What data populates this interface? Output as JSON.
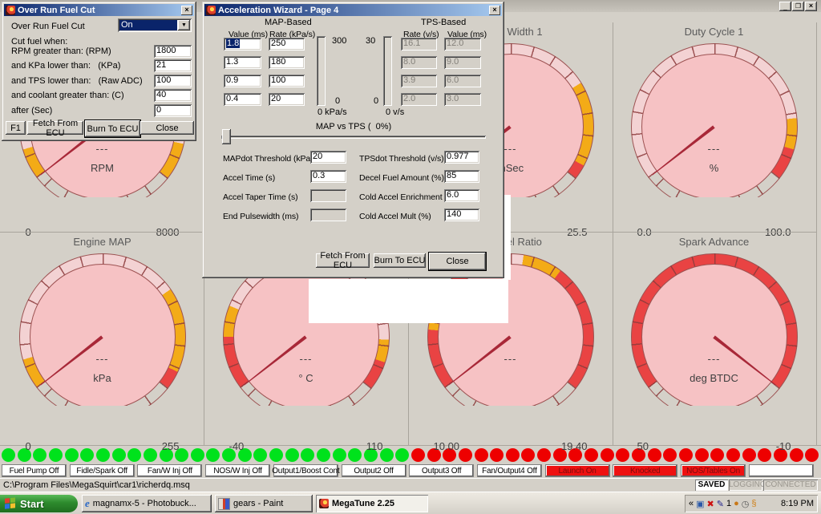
{
  "main_window": {
    "controls": {
      "minimize": "_",
      "maximize": "❐",
      "close": "×"
    }
  },
  "overrun": {
    "title": "Over Run Fuel Cut",
    "enable_label": "Over Run Fuel Cut",
    "enable_value": "On",
    "cut_when": "Cut fuel when:",
    "fields": [
      {
        "label": "RPM greater than: (RPM)",
        "value": "1800"
      },
      {
        "label": "and KPa lower than:   (KPa)",
        "value": "21"
      },
      {
        "label": "and TPS lower than:   (Raw ADC)",
        "value": "100"
      },
      {
        "label": "and coolant greater than: (C)",
        "value": "40"
      },
      {
        "label": "after (Sec)",
        "value": "0"
      }
    ],
    "buttons": [
      "F1",
      "Fetch From ECU",
      "Burn To ECU",
      "Close"
    ]
  },
  "wizard": {
    "title": "Acceleration Wizard - Page 4",
    "map": {
      "heading": "MAP-Based",
      "col_value": "Value (ms)",
      "col_rate": "Rate (kPa/s)",
      "rows": [
        [
          "1.8",
          "250"
        ],
        [
          "1.3",
          "180"
        ],
        [
          "0.9",
          "100"
        ],
        [
          "0.4",
          "20"
        ]
      ],
      "selected_cell": "1.8",
      "bar_max": "300",
      "bar_min": "0",
      "bar_caption": "0 kPa/s"
    },
    "tps": {
      "heading": "TPS-Based",
      "col_rate": "Rate (v/s)",
      "col_value": "Value (ms)",
      "rows": [
        [
          "16.1",
          "12.0"
        ],
        [
          "8.0",
          "9.0"
        ],
        [
          "3.9",
          "6.0"
        ],
        [
          "2.0",
          "3.0"
        ]
      ],
      "bar_max": "30",
      "bar_min": "0",
      "bar_caption": "0 v/s"
    },
    "slider_label": "MAP vs TPS (  0%)",
    "left_fields": [
      {
        "label": "MAPdot Threshold (kPa/s)",
        "value": "20",
        "disabled": false
      },
      {
        "label": "Accel Time (s)",
        "value": "0.3",
        "disabled": false
      },
      {
        "label": "Accel Taper Time (s)",
        "value": "",
        "disabled": true
      },
      {
        "label": "End Pulsewidth (ms)",
        "value": "",
        "disabled": true
      }
    ],
    "right_fields": [
      {
        "label": "TPSdot Threshold (v/s)",
        "value": "0.977",
        "disabled": false
      },
      {
        "label": "Decel Fuel Amount (%)",
        "value": "85",
        "disabled": false
      },
      {
        "label": "Cold Accel Enrichment (ms)",
        "value": "6.0",
        "disabled": false
      },
      {
        "label": "Cold Accel Mult (%)",
        "value": "140",
        "disabled": false
      }
    ],
    "buttons": [
      "Fetch From ECU",
      "Burn To ECU",
      "Close"
    ]
  },
  "chart_data": {
    "type": "gauge-cluster",
    "colors": {
      "rim": "#f3d2d3",
      "yellow": "#f3ab17",
      "red": "#e94343",
      "face": "#f6c2c4",
      "needle": "#a82838",
      "outline": "#9c5252"
    },
    "gauges": [
      {
        "col": 0,
        "row": 0,
        "title": "",
        "value": "---",
        "unit": "RPM",
        "min": "0",
        "max": "8000",
        "needle_deg": 232,
        "bands": [
          [
            232,
            254,
            "yellow"
          ],
          [
            254,
            462,
            "rim"
          ],
          [
            462,
            488,
            "yellow"
          ]
        ]
      },
      {
        "col": 2,
        "row": 0,
        "title": "Pulse Width 1",
        "value": "---",
        "unit": "mSec",
        "min": "",
        "max": "25.5",
        "needle_deg": 232,
        "bands": [
          [
            232,
            254,
            "yellow"
          ],
          [
            254,
            418,
            "rim"
          ],
          [
            418,
            478,
            "yellow"
          ],
          [
            478,
            488,
            "red"
          ]
        ]
      },
      {
        "col": 3,
        "row": 0,
        "title": "Duty Cycle 1",
        "value": "---",
        "unit": "%",
        "min": "0.0",
        "max": "100.0",
        "needle_deg": 232,
        "bands": [
          [
            232,
            444,
            "rim"
          ],
          [
            444,
            466,
            "yellow"
          ],
          [
            466,
            488,
            "red"
          ]
        ]
      },
      {
        "col": 0,
        "row": 1,
        "title": "Engine MAP",
        "value": "---",
        "unit": "kPa",
        "min": "0",
        "max": "255",
        "needle_deg": 232,
        "bands": [
          [
            232,
            254,
            "yellow"
          ],
          [
            254,
            415,
            "rim"
          ],
          [
            415,
            475,
            "yellow"
          ],
          [
            475,
            488,
            "red"
          ]
        ]
      },
      {
        "col": 1,
        "row": 1,
        "title": "",
        "value": "---",
        "unit": "° C",
        "min": "-40",
        "max": "110",
        "needle_deg": 232,
        "bands": [
          [
            232,
            270,
            "red"
          ],
          [
            270,
            292,
            "yellow"
          ],
          [
            292,
            452,
            "rim"
          ],
          [
            452,
            468,
            "yellow"
          ],
          [
            468,
            488,
            "red"
          ]
        ]
      },
      {
        "col": 2,
        "row": 1,
        "title": "Air:Fuel Ratio",
        "value": "---",
        "unit": "",
        "min": "10.00",
        "max": "19.40",
        "needle_deg": 232,
        "bands": [
          [
            232,
            275,
            "red"
          ],
          [
            275,
            294,
            "yellow"
          ],
          [
            294,
            350,
            "red"
          ],
          [
            350,
            369,
            "rim"
          ],
          [
            369,
            397,
            "yellow"
          ],
          [
            397,
            488,
            "red"
          ]
        ]
      },
      {
        "col": 3,
        "row": 1,
        "title": "Spark Advance",
        "value": "---",
        "unit": "deg BTDC",
        "min": "50",
        "max": "-10",
        "needle_deg": 128,
        "bands": [
          [
            232,
            488,
            "red"
          ]
        ]
      }
    ]
  },
  "leds": {
    "green_count": 26,
    "red_count": 26,
    "green_color": "#00e21c",
    "red_color": "#ee0000"
  },
  "indicator_buttons": [
    {
      "label": "Fuel Pump Off",
      "alarm": false
    },
    {
      "label": "Fidle/Spark Off",
      "alarm": false
    },
    {
      "label": "Fan/W Inj Off",
      "alarm": false
    },
    {
      "label": "NOS/W Inj Off",
      "alarm": false
    },
    {
      "label": "Output1/Boost Cont",
      "alarm": false
    },
    {
      "label": "Output2 Off",
      "alarm": false
    },
    {
      "label": "Output3 Off",
      "alarm": false
    },
    {
      "label": "Fan/Output4 Off",
      "alarm": false
    },
    {
      "label": "Launch On",
      "alarm": true
    },
    {
      "label": "Knocked",
      "alarm": true
    },
    {
      "label": "NOS/Tables On",
      "alarm": true
    },
    {
      "label": "",
      "alarm": false
    }
  ],
  "status_bar": {
    "path": "C:\\Program Files\\MegaSquirt\\car1\\richerdq.msq",
    "flags": [
      {
        "label": "SAVED",
        "active": true
      },
      {
        "label": "LOGGING",
        "active": false
      },
      {
        "label": "CONNECTED",
        "active": false
      }
    ]
  },
  "taskbar": {
    "start_label": "Start",
    "tasks": [
      {
        "label": "magnamx-5 - Photobuck...",
        "icon": "internet-explorer",
        "active": false
      },
      {
        "label": "gears - Paint",
        "icon": "paint",
        "active": false
      },
      {
        "label": "MegaTune 2.25",
        "icon": "megatune",
        "active": true
      }
    ],
    "tray_icons": [
      {
        "name": "tray-expand-icon",
        "glyph": "«",
        "color": "#000000"
      },
      {
        "name": "tray-network-icon",
        "glyph": "▣",
        "color": "#2a58a8"
      },
      {
        "name": "tray-error-icon",
        "glyph": "✖",
        "color": "#cc1010"
      },
      {
        "name": "tray-pen-icon",
        "glyph": "✎",
        "color": "#20208c"
      },
      {
        "name": "tray-one-icon",
        "glyph": "1",
        "color": "#000000"
      },
      {
        "name": "tray-orbs-icon",
        "glyph": "●",
        "color": "#c87818"
      },
      {
        "name": "tray-clock-icon",
        "glyph": "◷",
        "color": "#555555"
      },
      {
        "name": "tray-connector-icon",
        "glyph": "§",
        "color": "#d08018"
      }
    ],
    "tray_time": "8:19 PM"
  }
}
